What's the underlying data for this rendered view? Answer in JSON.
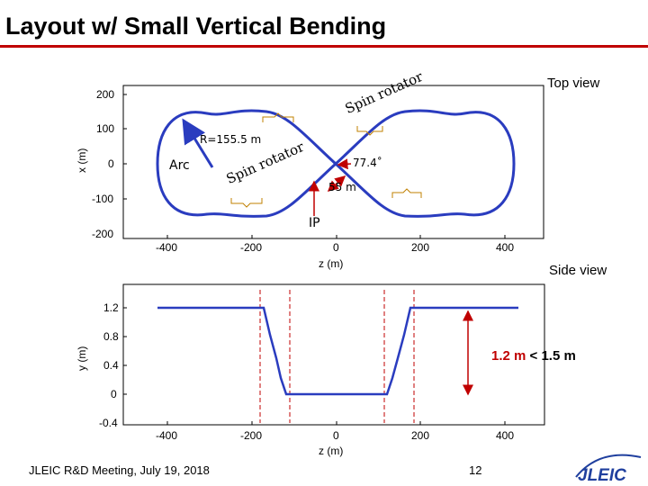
{
  "slide": {
    "title": "Layout w/ Small Vertical Bending",
    "footer": "JLEIC R&D Meeting, July 19, 2018",
    "page_number": "12",
    "logo_text": "JLEIC"
  },
  "top_view": {
    "label": "Top view",
    "xlabel": "z (m)",
    "ylabel": "x (m)",
    "x_ticks": [
      "-400",
      "-200",
      "0",
      "200",
      "400"
    ],
    "y_ticks": [
      "200",
      "100",
      "0",
      "-100",
      "-200"
    ],
    "annotations": {
      "radius": "R=155.5 m",
      "arc": "Arc",
      "angle": "77.4˚",
      "distance": "55 m",
      "ip": "IP",
      "spin_rotator_upper": "Spin rotator",
      "spin_rotator_lower": "Spin rotator"
    }
  },
  "side_view": {
    "label": "Side view",
    "xlabel": "z (m)",
    "ylabel": "y (m)",
    "x_ticks": [
      "-400",
      "-200",
      "0",
      "200",
      "400"
    ],
    "y_ticks": [
      "1.2",
      "0.8",
      "0.4",
      "0",
      "-0.4"
    ],
    "height_note_red": "1.2 m",
    "height_note_rest": " < 1.5 m"
  },
  "colors": {
    "ring": "#2a3cbf",
    "accent": "#c00000",
    "logo": "#1f3f9e"
  }
}
